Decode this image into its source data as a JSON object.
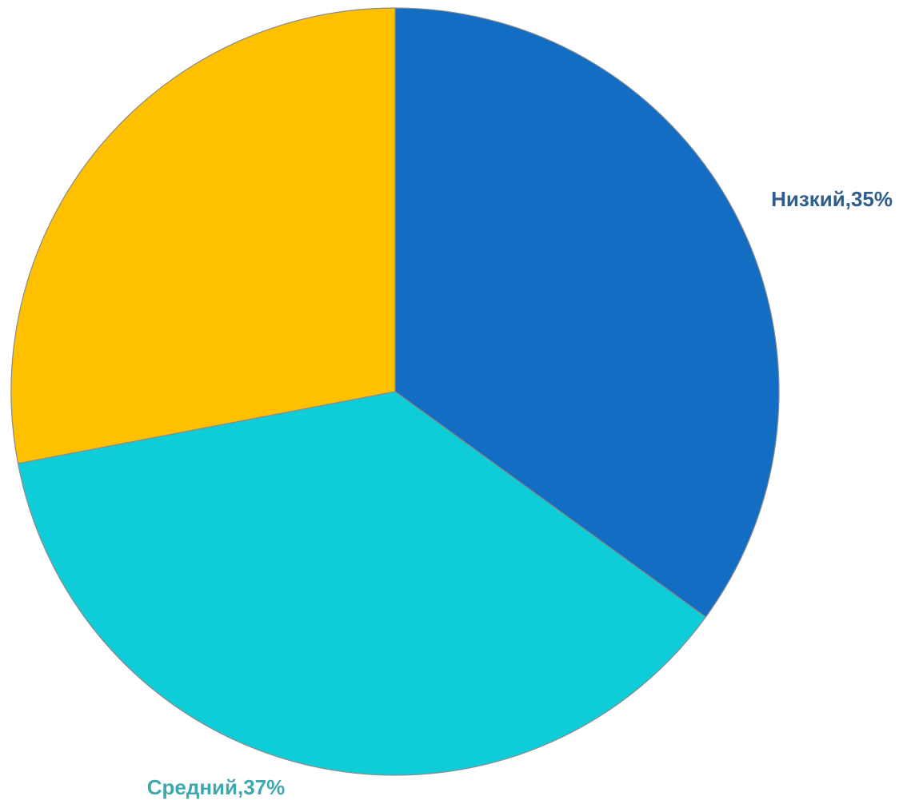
{
  "chart_data": {
    "type": "pie",
    "slices": [
      {
        "label": "Низкий",
        "value": 35,
        "color": "#136DC3",
        "data_label": "Низкий,35%",
        "label_color": "#2F5E8C"
      },
      {
        "label": "Средний",
        "value": 37,
        "color": "#0ECDD9",
        "data_label": "Средний,37%",
        "label_color": "#3FA8AE"
      },
      {
        "label": "",
        "value": 28,
        "color": "#FFC000",
        "data_label": ""
      }
    ],
    "start_angle": "12 o'clock",
    "direction": "clockwise"
  }
}
